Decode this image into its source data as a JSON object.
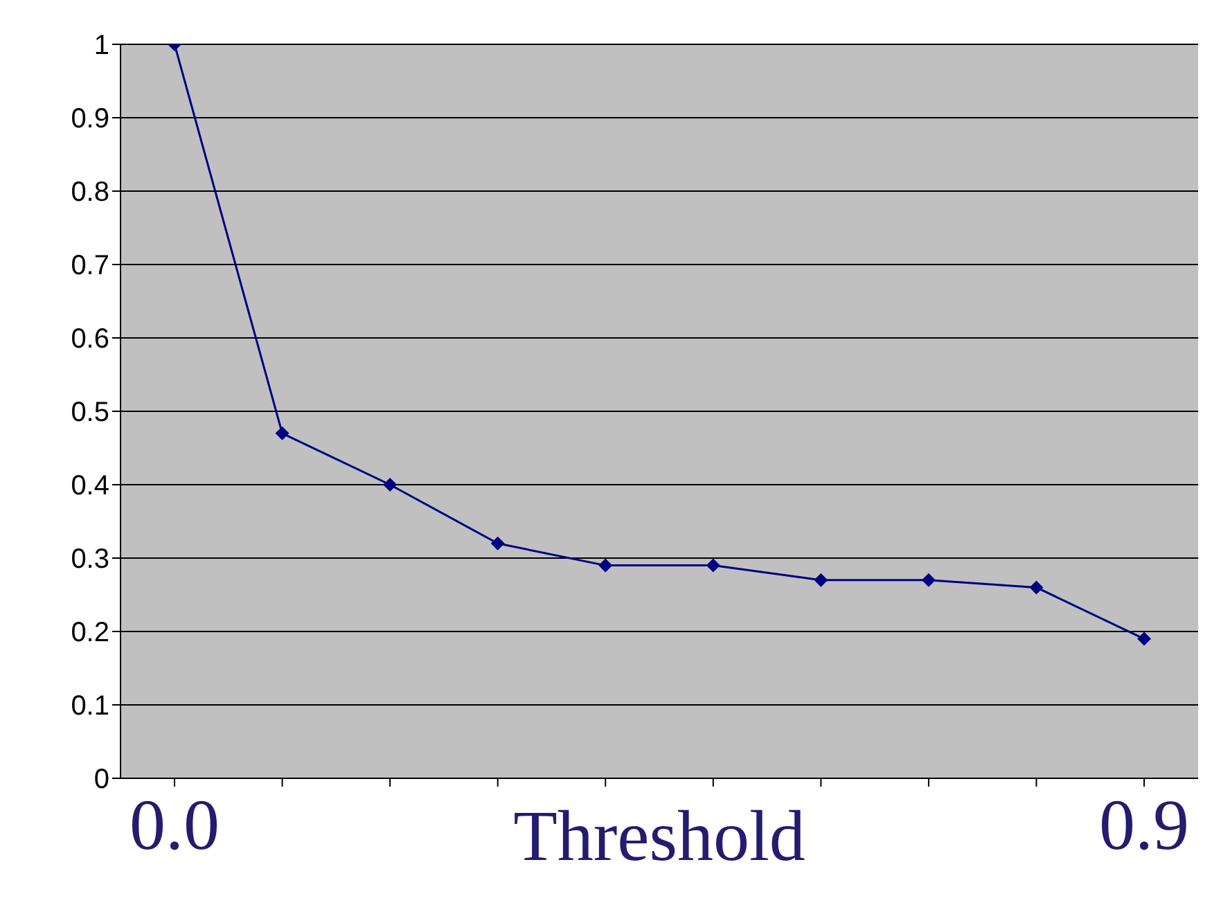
{
  "chart_data": {
    "type": "line",
    "xlabel": "Threshold",
    "categories": [
      "0.0",
      null,
      null,
      null,
      null,
      null,
      null,
      null,
      null,
      "0.9"
    ],
    "series": [
      {
        "color": "#000080",
        "values": [
          1,
          0.47,
          0.4,
          0.32,
          0.29,
          0.29,
          0.27,
          0.27,
          0.26,
          0.19
        ]
      }
    ],
    "ylim": [
      0,
      1
    ],
    "yticks": [
      0,
      0.1,
      0.2,
      0.3,
      0.4,
      0.5,
      0.6,
      0.7,
      0.8,
      0.9,
      1
    ],
    "grid": "y",
    "legend": false,
    "marker": "diamond",
    "line_style": "solid"
  }
}
